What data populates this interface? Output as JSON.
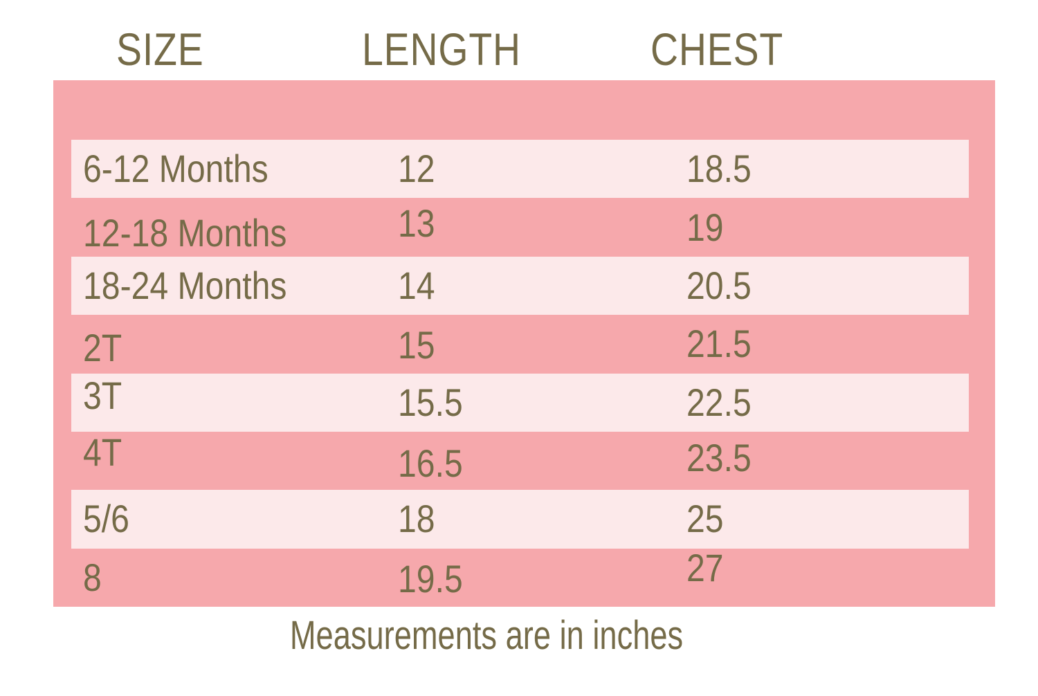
{
  "colors": {
    "page_bg": "#ffffff",
    "band_dark": "#f6a8ac",
    "band_light": "#fce9ea",
    "text": "#756b48"
  },
  "table": {
    "headers": [
      "SIZE",
      "LENGTH",
      "CHEST"
    ],
    "rows": [
      {
        "size": "6-12 Months",
        "length": "12",
        "chest": "18.5",
        "variant": "light"
      },
      {
        "size": "12-18 Months",
        "length": "13",
        "chest": "19",
        "variant": "dark"
      },
      {
        "size": "18-24 Months",
        "length": "14",
        "chest": "20.5",
        "variant": "light"
      },
      {
        "size": "2T",
        "length": "15",
        "chest": "21.5",
        "variant": "dark"
      },
      {
        "size": "3T",
        "length": "15.5",
        "chest": "22.5",
        "variant": "light"
      },
      {
        "size": "4T",
        "length": "16.5",
        "chest": "23.5",
        "variant": "dark"
      },
      {
        "size": "5/6",
        "length": "18",
        "chest": "25",
        "variant": "light"
      },
      {
        "size": "8",
        "length": "19.5",
        "chest": "27",
        "variant": "dark"
      }
    ]
  },
  "footer": {
    "note": "Measurements are in inches"
  },
  "chart_data": {
    "type": "table",
    "columns": [
      "SIZE",
      "LENGTH",
      "CHEST"
    ],
    "rows": [
      [
        "6-12 Months",
        12,
        18.5
      ],
      [
        "12-18 Months",
        13,
        19
      ],
      [
        "18-24 Months",
        14,
        20.5
      ],
      [
        "2T",
        15,
        21.5
      ],
      [
        "3T",
        15.5,
        22.5
      ],
      [
        "4T",
        16.5,
        23.5
      ],
      [
        "5/6",
        18,
        25
      ],
      [
        "8",
        19.5,
        27
      ]
    ],
    "note": "Measurements are in inches"
  }
}
